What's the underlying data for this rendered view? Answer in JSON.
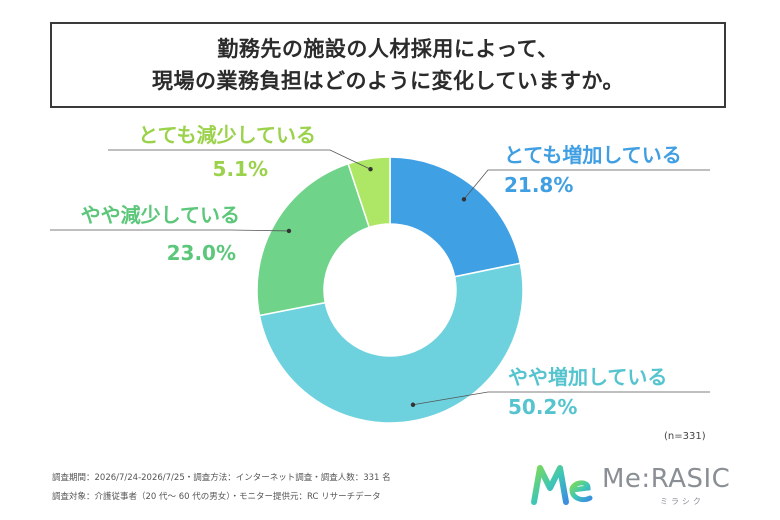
{
  "title": {
    "line1": "勤務先の施設の人材採用によって、",
    "line2": "現場の業務負担はどのように変化していますか。"
  },
  "chart_data": {
    "type": "pie",
    "donut": true,
    "categories": [
      "とても増加している",
      "やや増加している",
      "やや減少している",
      "とても減少している"
    ],
    "values": [
      21.8,
      50.2,
      23.0,
      5.1
    ],
    "value_labels": [
      "21.8%",
      "50.2%",
      "23.0%",
      "5.1%"
    ],
    "colors": [
      "#3fa0e4",
      "#6dd2de",
      "#6fd38a",
      "#aee665"
    ],
    "label_colors": [
      "#3f9fe2",
      "#55c4cf",
      "#5cc77a",
      "#9bd24b"
    ]
  },
  "sample_size": "(n=331)",
  "footnotes": [
    "調査期間：2026/7/24-2026/7/25・調査方法：インターネット調査・調査人数：331 名",
    "調査対象：介護従事者（20 代～ 60 代の男女）・モニター提供元：RC リサーチデータ"
  ],
  "brand": {
    "mark": "Me",
    "name": "Me:RASIC",
    "kana": "ミラシク"
  }
}
